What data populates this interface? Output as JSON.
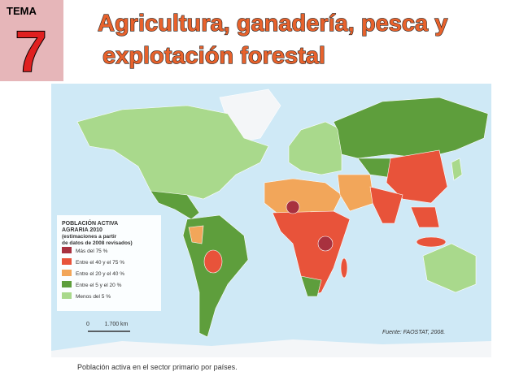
{
  "header": {
    "tema": "TEMA",
    "number": "7",
    "title_line1": "Agricultura, ganadería, pesca y",
    "title_line2": "explotación forestal"
  },
  "map": {
    "legend": {
      "title_lines": [
        "POBLACIÓN ACTIVA",
        "AGRARIA 2010",
        "(estimaciones a partir",
        "de datos de 2008 revisados)"
      ],
      "items": [
        {
          "label": "Más del 75 %",
          "color": "#a8313f"
        },
        {
          "label": "Entre el 40 y el 75 %",
          "color": "#e8533a"
        },
        {
          "label": "Entre el 20 y el 40 %",
          "color": "#f2a65a"
        },
        {
          "label": "Entre el 5 y el 20 %",
          "color": "#5e9e3c"
        },
        {
          "label": "Menos del 5 %",
          "color": "#a9d98c"
        }
      ]
    },
    "scale": {
      "zero": "0",
      "label": "1.700 km"
    },
    "source": "Fuente: FAOSTAT, 2008."
  },
  "caption": "Población activa en el sector primario por países."
}
